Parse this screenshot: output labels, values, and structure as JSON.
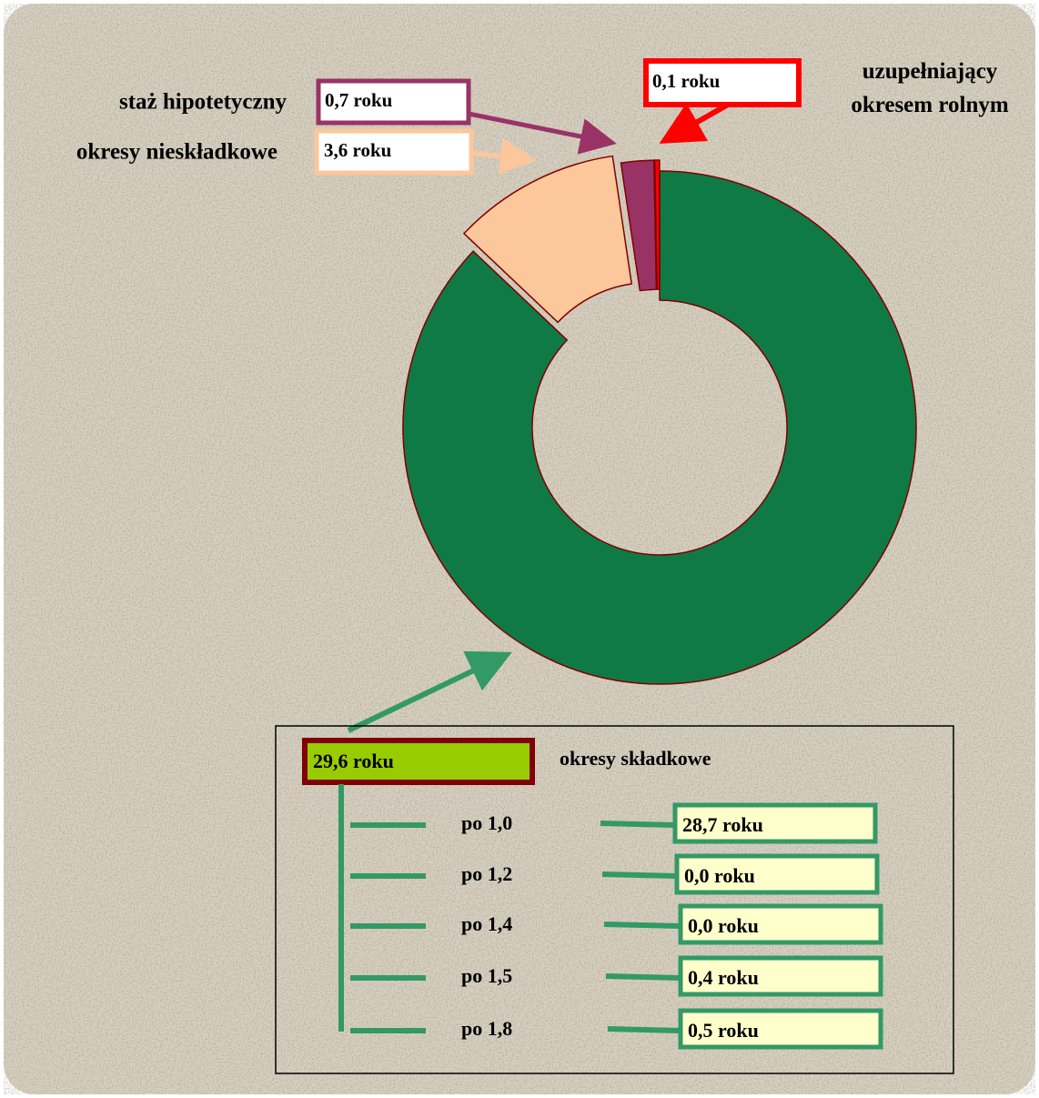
{
  "chart_data": {
    "type": "pie",
    "categories": [
      "okresy składkowe",
      "okresy nieskładkowe",
      "staż hipotetyczny",
      "uzupełniający okresem rolnym"
    ],
    "values": [
      29.6,
      3.6,
      0.7,
      0.1
    ],
    "value_labels": [
      "29,6 roku",
      "3,6 roku",
      "0,7 roku",
      "0,1 roku"
    ],
    "colors": [
      "#0f7a45",
      "#fcc79a",
      "#993366",
      "#ff0000"
    ],
    "breakdown": {
      "categories": [
        "po 1,0",
        "po 1,2",
        "po 1,4",
        "po 1,5",
        "po 1,8"
      ],
      "values": [
        28.7,
        0.0,
        0.0,
        0.4,
        0.5
      ],
      "value_labels": [
        "28,7 roku",
        "0,0 roku",
        "0,0 roku",
        "0,4 roku",
        "0,5 roku"
      ]
    }
  }
}
